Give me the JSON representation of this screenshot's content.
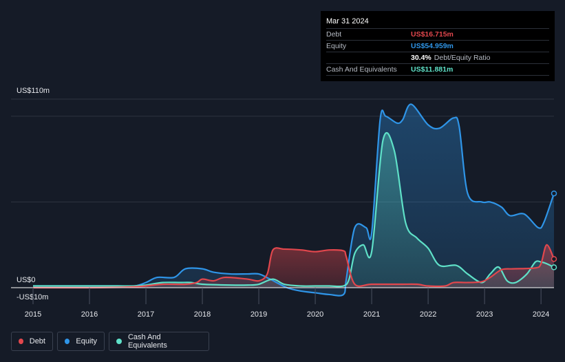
{
  "colors": {
    "debt": "#e2474d",
    "equity": "#2f95e8",
    "cash": "#5fe1c8",
    "background": "#151b27",
    "grid": "#2e3440"
  },
  "tooltip": {
    "date": "Mar 31 2024",
    "rows": [
      {
        "label": "Debt",
        "value": "US$16.715m"
      },
      {
        "label": "Equity",
        "value": "US$54.959m"
      },
      {
        "label": "",
        "value": "30.4%",
        "suffix": "Debt/Equity Ratio"
      },
      {
        "label": "Cash And Equivalents",
        "value": "US$11.881m"
      }
    ]
  },
  "legend": {
    "items": [
      {
        "label": "Debt",
        "color": "#e2474d"
      },
      {
        "label": "Equity",
        "color": "#2f95e8"
      },
      {
        "label": "Cash And Equivalents",
        "color": "#5fe1c8"
      }
    ]
  },
  "chart_data": {
    "type": "area",
    "y_top_label": "US$110m",
    "y_zero_label": "US$0",
    "y_bottom_label": "-US$10m",
    "ylim": [
      -10,
      110
    ],
    "xlim": [
      2015.0,
      2024.23
    ],
    "x_ticks": [
      "2015",
      "2016",
      "2017",
      "2018",
      "2019",
      "2020",
      "2021",
      "2022",
      "2023",
      "2024"
    ],
    "grid": true,
    "legend_position": "bottom-left",
    "series": [
      {
        "name": "Debt",
        "x": [
          2015.0,
          2015.5,
          2016.0,
          2016.5,
          2016.8,
          2017.0,
          2017.3,
          2017.7,
          2017.9,
          2018.0,
          2018.2,
          2018.4,
          2018.8,
          2019.0,
          2019.15,
          2019.25,
          2019.45,
          2019.75,
          2020.0,
          2020.25,
          2020.5,
          2020.55,
          2020.7,
          2021.0,
          2021.5,
          2021.8,
          2022.0,
          2022.3,
          2022.45,
          2022.7,
          2022.95,
          2023.1,
          2023.3,
          2023.5,
          2023.9,
          2024.0,
          2024.1,
          2024.23
        ],
        "values": [
          0.0,
          0.0,
          0.0,
          0.2,
          0.5,
          1.0,
          2.0,
          2.0,
          3.0,
          5.0,
          4.0,
          6.0,
          5.0,
          4.0,
          8.0,
          22.0,
          22.5,
          22.0,
          21.0,
          22.0,
          21.5,
          18.0,
          2.0,
          2.0,
          2.0,
          2.0,
          1.0,
          1.0,
          3.0,
          3.0,
          3.5,
          6.0,
          10.5,
          11.0,
          11.5,
          14.0,
          25.0,
          16.715
        ]
      },
      {
        "name": "Equity",
        "x": [
          2015.0,
          2015.5,
          2016.0,
          2016.5,
          2016.8,
          2017.0,
          2017.2,
          2017.5,
          2017.7,
          2018.0,
          2018.2,
          2018.5,
          2018.8,
          2019.0,
          2019.2,
          2019.5,
          2019.75,
          2020.0,
          2020.25,
          2020.5,
          2020.55,
          2020.7,
          2020.9,
          2021.0,
          2021.15,
          2021.25,
          2021.45,
          2021.55,
          2021.7,
          2022.0,
          2022.2,
          2022.45,
          2022.55,
          2022.7,
          2022.95,
          2023.1,
          2023.3,
          2023.45,
          2023.7,
          2023.95,
          2024.05,
          2024.23
        ],
        "values": [
          1.0,
          1.0,
          1.0,
          1.0,
          1.0,
          3.0,
          6.0,
          6.0,
          11.0,
          11.0,
          9.0,
          8.0,
          8.0,
          8.0,
          5.0,
          0.0,
          -2.0,
          -3.0,
          -4.0,
          -4.0,
          5.0,
          35.0,
          35.0,
          32.0,
          98.0,
          100.0,
          96.0,
          98.0,
          107.0,
          95.0,
          93.0,
          99.0,
          94.0,
          55.0,
          50.0,
          50.0,
          47.0,
          42.0,
          43.0,
          35.0,
          38.0,
          54.959
        ]
      },
      {
        "name": "Cash And Equivalents",
        "x": [
          2015.0,
          2015.5,
          2016.0,
          2016.5,
          2016.8,
          2017.0,
          2017.3,
          2017.6,
          2017.8,
          2018.0,
          2018.5,
          2018.8,
          2019.0,
          2019.25,
          2019.45,
          2019.75,
          2020.0,
          2020.25,
          2020.5,
          2020.6,
          2020.7,
          2020.85,
          2021.0,
          2021.2,
          2021.4,
          2021.6,
          2021.8,
          2022.0,
          2022.2,
          2022.5,
          2022.7,
          2022.95,
          2023.1,
          2023.25,
          2023.4,
          2023.55,
          2023.75,
          2023.9,
          2024.0,
          2024.1,
          2024.23
        ],
        "values": [
          1.0,
          1.0,
          1.0,
          1.0,
          1.0,
          1.5,
          3.0,
          3.0,
          3.0,
          2.0,
          1.5,
          1.5,
          2.0,
          5.0,
          2.0,
          1.0,
          1.0,
          1.0,
          1.0,
          5.0,
          20.0,
          25.0,
          21.0,
          86.0,
          80.0,
          38.0,
          29.0,
          23.0,
          13.0,
          13.0,
          8.0,
          3.0,
          8.0,
          12.0,
          4.0,
          3.0,
          8.0,
          15.0,
          15.0,
          14.0,
          11.881
        ]
      }
    ]
  }
}
